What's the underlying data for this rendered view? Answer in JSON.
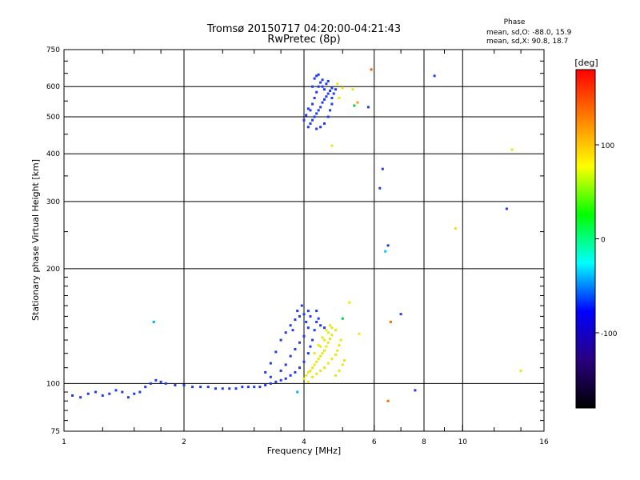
{
  "chart_data": {
    "type": "scatter",
    "title": "Tromsø 20150717 04:20:00-04:21:43",
    "subtitle": "RwPretec (8p)",
    "xlabel": "Frequency [MHz]",
    "ylabel": "Stationary phase Virtual Height [km]",
    "x_scale": "log",
    "y_scale": "log",
    "xlim": [
      1,
      16
    ],
    "ylim": [
      75,
      750
    ],
    "x_ticks": [
      1,
      2,
      4,
      6,
      8,
      10,
      16
    ],
    "y_ticks": [
      75,
      100,
      200,
      300,
      400,
      500,
      600,
      750
    ],
    "x_gridlines": [
      2,
      4,
      6,
      8,
      10
    ],
    "y_gridlines": [
      100,
      200,
      300,
      400,
      500,
      600
    ],
    "grid": true,
    "phase_stats": {
      "heading": "Phase",
      "line_o": "mean, sd,O: -88.0, 15.9",
      "line_x": "mean, sd,X:  90.8, 18.7"
    },
    "colorbar": {
      "label": "[deg]",
      "range": [
        -180,
        180
      ],
      "ticks": [
        100,
        0,
        -100
      ],
      "colors": [
        "#ff0000",
        "#ff7f00",
        "#ffff00",
        "#00ff00",
        "#00ffff",
        "#0000ff",
        "#2a007f",
        "#000000"
      ]
    },
    "series": [
      {
        "name": "O",
        "mean_phase": -88.0,
        "color": "#1f3bf0",
        "points": [
          [
            1.05,
            93
          ],
          [
            1.1,
            92
          ],
          [
            1.15,
            94
          ],
          [
            1.2,
            95
          ],
          [
            1.25,
            93
          ],
          [
            1.3,
            94
          ],
          [
            1.35,
            96
          ],
          [
            1.4,
            95
          ],
          [
            1.45,
            92
          ],
          [
            1.5,
            94
          ],
          [
            1.55,
            95
          ],
          [
            1.6,
            98
          ],
          [
            1.65,
            100
          ],
          [
            1.7,
            102
          ],
          [
            1.75,
            101
          ],
          [
            1.8,
            100
          ],
          [
            1.9,
            99
          ],
          [
            2.0,
            99
          ],
          [
            2.1,
            98
          ],
          [
            2.2,
            98
          ],
          [
            2.3,
            98
          ],
          [
            2.4,
            97
          ],
          [
            2.5,
            97
          ],
          [
            2.6,
            97
          ],
          [
            2.7,
            97
          ],
          [
            2.8,
            98
          ],
          [
            2.9,
            98
          ],
          [
            3.0,
            98
          ],
          [
            3.1,
            98
          ],
          [
            3.2,
            99
          ],
          [
            3.3,
            100
          ],
          [
            3.4,
            101
          ],
          [
            3.5,
            102
          ],
          [
            3.6,
            103
          ],
          [
            3.7,
            105
          ],
          [
            3.8,
            107
          ],
          [
            3.9,
            110
          ],
          [
            4.0,
            114
          ],
          [
            4.1,
            120
          ],
          [
            4.15,
            125
          ],
          [
            4.2,
            130
          ],
          [
            4.25,
            138
          ],
          [
            4.3,
            145
          ],
          [
            3.6,
            112
          ],
          [
            3.7,
            118
          ],
          [
            3.8,
            123
          ],
          [
            3.9,
            128
          ],
          [
            4.0,
            133
          ],
          [
            4.1,
            140
          ],
          [
            3.5,
            108
          ],
          [
            3.3,
            113
          ],
          [
            3.4,
            121
          ],
          [
            3.5,
            130
          ],
          [
            3.6,
            136
          ],
          [
            3.7,
            142
          ],
          [
            3.8,
            147
          ],
          [
            3.9,
            150
          ],
          [
            4.0,
            152
          ],
          [
            4.05,
            145
          ],
          [
            4.1,
            155
          ],
          [
            3.2,
            107
          ],
          [
            3.3,
            104
          ],
          [
            3.95,
            160
          ],
          [
            4.15,
            150
          ],
          [
            4.3,
            155
          ],
          [
            4.35,
            148
          ],
          [
            4.4,
            142
          ],
          [
            4.5,
            140
          ],
          [
            3.75,
            138
          ],
          [
            3.85,
            155
          ],
          [
            4.1,
            470
          ],
          [
            4.15,
            480
          ],
          [
            4.2,
            490
          ],
          [
            4.25,
            500
          ],
          [
            4.3,
            510
          ],
          [
            4.35,
            520
          ],
          [
            4.4,
            530
          ],
          [
            4.45,
            545
          ],
          [
            4.5,
            555
          ],
          [
            4.55,
            565
          ],
          [
            4.6,
            575
          ],
          [
            4.65,
            585
          ],
          [
            4.7,
            595
          ],
          [
            4.15,
            520
          ],
          [
            4.2,
            540
          ],
          [
            4.25,
            560
          ],
          [
            4.3,
            580
          ],
          [
            4.35,
            600
          ],
          [
            4.4,
            615
          ],
          [
            4.45,
            625
          ],
          [
            4.0,
            490
          ],
          [
            4.05,
            505
          ],
          [
            4.1,
            525
          ],
          [
            4.2,
            600
          ],
          [
            4.25,
            630
          ],
          [
            4.3,
            640
          ],
          [
            4.35,
            645
          ],
          [
            4.45,
            600
          ],
          [
            4.5,
            590
          ],
          [
            4.55,
            610
          ],
          [
            4.6,
            620
          ],
          [
            4.7,
            560
          ],
          [
            4.75,
            575
          ],
          [
            4.8,
            590
          ],
          [
            4.3,
            465
          ],
          [
            4.4,
            470
          ],
          [
            4.5,
            480
          ],
          [
            4.6,
            500
          ],
          [
            4.65,
            520
          ],
          [
            4.7,
            540
          ],
          [
            5.8,
            530
          ],
          [
            6.3,
            365
          ],
          [
            6.2,
            325
          ],
          [
            6.5,
            230
          ],
          [
            7.0,
            152
          ],
          [
            7.6,
            96
          ],
          [
            8.5,
            640
          ],
          [
            12.9,
            287
          ]
        ]
      },
      {
        "name": "X",
        "mean_phase": 90.8,
        "color": "#e8e80f",
        "points": [
          [
            4.0,
            103
          ],
          [
            4.05,
            105
          ],
          [
            4.1,
            107
          ],
          [
            4.15,
            108
          ],
          [
            4.2,
            110
          ],
          [
            4.25,
            112
          ],
          [
            4.3,
            114
          ],
          [
            4.35,
            116
          ],
          [
            4.4,
            118
          ],
          [
            4.45,
            120
          ],
          [
            4.5,
            122
          ],
          [
            4.55,
            125
          ],
          [
            4.6,
            128
          ],
          [
            4.65,
            131
          ],
          [
            4.7,
            134
          ],
          [
            4.2,
            104
          ],
          [
            4.3,
            106
          ],
          [
            4.4,
            108
          ],
          [
            4.5,
            110
          ],
          [
            4.6,
            113
          ],
          [
            4.7,
            116
          ],
          [
            4.8,
            119
          ],
          [
            4.85,
            122
          ],
          [
            4.9,
            126
          ],
          [
            4.95,
            130
          ],
          [
            4.4,
            125
          ],
          [
            4.5,
            130
          ],
          [
            4.6,
            136
          ],
          [
            4.7,
            140
          ],
          [
            4.8,
            138
          ],
          [
            4.25,
            120
          ],
          [
            4.35,
            126
          ],
          [
            4.45,
            132
          ],
          [
            4.55,
            138
          ],
          [
            4.65,
            142
          ],
          [
            5.0,
            112
          ],
          [
            5.05,
            115
          ],
          [
            4.9,
            108
          ],
          [
            4.8,
            105
          ],
          [
            4.1,
            101
          ],
          [
            4.9,
            560
          ],
          [
            5.0,
            595
          ],
          [
            4.85,
            610
          ],
          [
            5.3,
            590
          ],
          [
            4.7,
            420
          ],
          [
            5.5,
            135
          ],
          [
            9.6,
            255
          ],
          [
            13.3,
            410
          ],
          [
            14.0,
            108
          ],
          [
            5.2,
            163
          ]
        ]
      }
    ],
    "outliers": [
      {
        "x": 5.9,
        "y": 665,
        "color": "#ff5a00"
      },
      {
        "x": 5.45,
        "y": 545,
        "color": "#ff9900"
      },
      {
        "x": 5.35,
        "y": 535,
        "color": "#00cc44"
      },
      {
        "x": 5.0,
        "y": 148,
        "color": "#00cc44"
      },
      {
        "x": 6.4,
        "y": 222,
        "color": "#00c8ff"
      },
      {
        "x": 6.6,
        "y": 145,
        "color": "#ff6a00"
      },
      {
        "x": 6.5,
        "y": 90,
        "color": "#ff6a00"
      },
      {
        "x": 1.68,
        "y": 145,
        "color": "#00aaff"
      },
      {
        "x": 3.85,
        "y": 95,
        "color": "#00aaff"
      }
    ]
  }
}
